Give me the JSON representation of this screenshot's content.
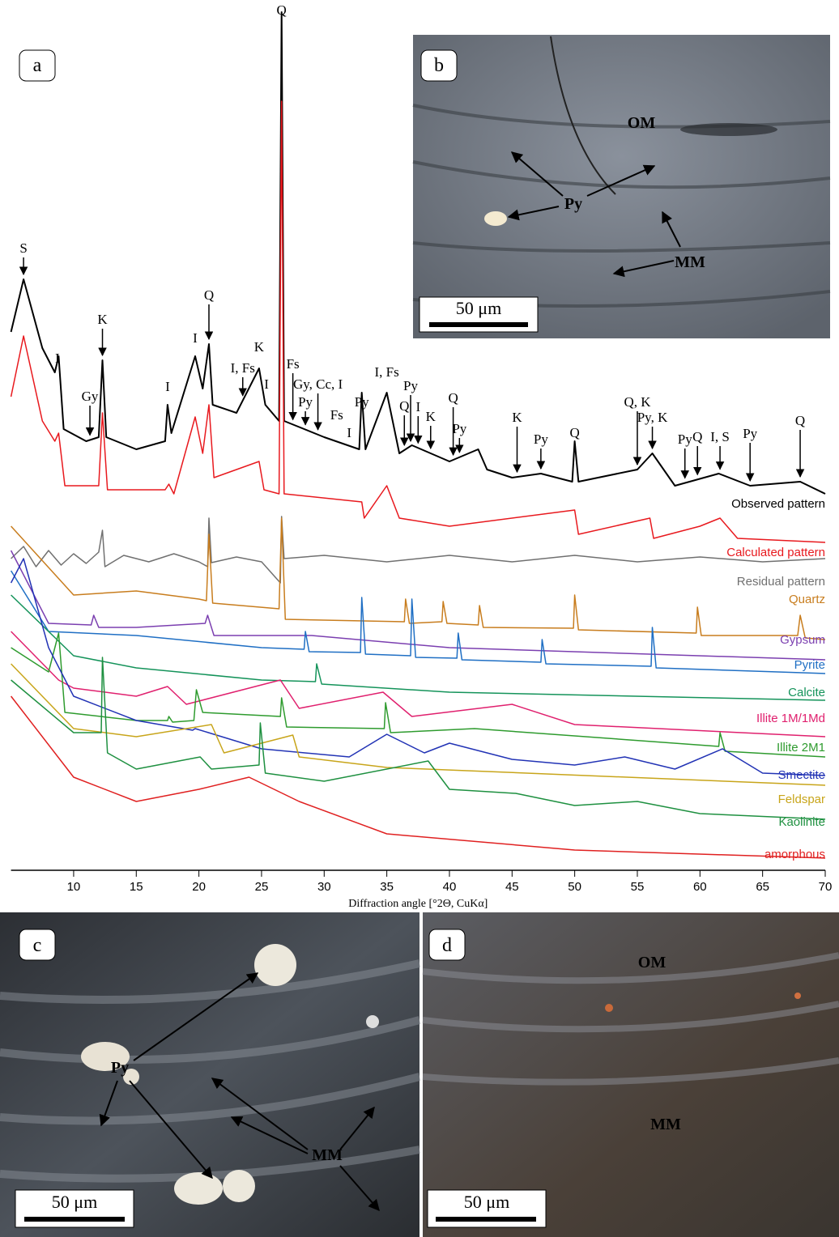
{
  "panels": {
    "a": {
      "letter": "a"
    },
    "b": {
      "letter": "b",
      "labels": [
        "OM",
        "Py",
        "MM"
      ],
      "scale": "50 μm"
    },
    "c": {
      "letter": "c",
      "labels": [
        "Py",
        "MM"
      ],
      "scale": "50 μm"
    },
    "d": {
      "letter": "d",
      "labels": [
        "OM",
        "MM"
      ],
      "scale": "50 μm"
    }
  },
  "chart_data": {
    "type": "line",
    "xlabel": "Diffraction angle [°2Θ, CuKα]",
    "xlim": [
      5,
      70
    ],
    "xticks": [
      10,
      15,
      20,
      25,
      30,
      35,
      40,
      45,
      50,
      55,
      60,
      65,
      70
    ],
    "ylim": [
      0,
      1065
    ],
    "series": [
      {
        "name": "Observed pattern",
        "color": "#000000",
        "x": [
          5,
          6,
          7.5,
          8.5,
          8.8,
          9.2,
          11,
          12,
          12.3,
          12.6,
          15,
          17.3,
          17.5,
          17.8,
          19.7,
          20.3,
          20.8,
          21.1,
          23,
          24.8,
          25.3,
          26.4,
          26.6,
          26.8,
          30,
          32.8,
          33,
          33.3,
          35,
          36,
          37,
          40,
          42.3,
          43,
          45,
          47.3,
          49.8,
          50,
          50.3,
          55,
          56.2,
          58,
          61.5,
          64,
          68,
          70
        ],
        "values": [
          665,
          730,
          645,
          615,
          635,
          545,
          530,
          535,
          630,
          535,
          520,
          530,
          575,
          540,
          635,
          595,
          650,
          575,
          565,
          620,
          575,
          555,
          1060,
          555,
          535,
          520,
          590,
          520,
          590,
          515,
          525,
          505,
          520,
          495,
          485,
          490,
          480,
          530,
          480,
          495,
          515,
          475,
          490,
          475,
          480,
          465
        ]
      },
      {
        "name": "Calculated pattern",
        "color": "#e8191e",
        "x": [
          5,
          6,
          7.5,
          8.5,
          8.8,
          9.3,
          12,
          12.3,
          12.7,
          17.3,
          17.6,
          18,
          19.7,
          20.3,
          20.8,
          21.2,
          24.8,
          25.2,
          26.4,
          26.6,
          26.8,
          33,
          33.2,
          35,
          36,
          40,
          50,
          50.3,
          56,
          56.3,
          60,
          61.6,
          63,
          70
        ],
        "values": [
          585,
          660,
          555,
          530,
          540,
          475,
          475,
          565,
          470,
          470,
          477,
          465,
          560,
          515,
          575,
          485,
          505,
          470,
          465,
          950,
          465,
          455,
          435,
          475,
          435,
          425,
          445,
          415,
          435,
          410,
          425,
          435,
          410,
          405
        ]
      },
      {
        "name": "Residual pattern",
        "color": "#707070",
        "x": [
          5,
          6,
          7,
          8,
          9,
          10,
          11,
          12,
          12.3,
          12.5,
          14,
          16,
          18,
          20,
          20.7,
          20.8,
          21,
          23,
          25,
          26.5,
          26.6,
          26.8,
          30,
          35,
          40,
          45,
          50,
          55,
          60,
          65,
          70
        ],
        "values": [
          385,
          400,
          375,
          395,
          377,
          391,
          379,
          393,
          420,
          375,
          389,
          381,
          391,
          381,
          375,
          435,
          380,
          387,
          381,
          355,
          437,
          385,
          389,
          381,
          389,
          381,
          389,
          381,
          387,
          381,
          385
        ]
      },
      {
        "name": "Quartz",
        "color": "#c87d1e",
        "x": [
          5,
          10,
          15,
          20,
          20.6,
          20.8,
          21.1,
          26.4,
          26.6,
          26.9,
          36.4,
          36.5,
          36.8,
          39.4,
          39.5,
          39.8,
          42.3,
          42.4,
          42.7,
          49.9,
          50,
          50.3,
          59.7,
          59.8,
          60.1,
          67.8,
          68,
          68.4,
          70
        ],
        "values": [
          425,
          340,
          345,
          335,
          333,
          415,
          330,
          323,
          435,
          310,
          307,
          335,
          305,
          307,
          332,
          305,
          303,
          327,
          300,
          299,
          340,
          297,
          293,
          325,
          290,
          290,
          315,
          287,
          285
        ]
      },
      {
        "name": "Gypsum",
        "color": "#7b3fb0",
        "x": [
          5,
          8,
          11.4,
          11.6,
          12,
          15,
          20.5,
          20.7,
          21.2,
          29,
          40,
          70
        ],
        "values": [
          395,
          305,
          303,
          315,
          300,
          300,
          305,
          315,
          290,
          290,
          275,
          260
        ]
      },
      {
        "name": "Pyrite",
        "color": "#1f6fc4",
        "x": [
          5,
          8,
          15,
          25,
          28.4,
          28.5,
          28.8,
          32.9,
          33,
          33.3,
          36.9,
          37,
          37.3,
          40.6,
          40.7,
          41,
          47.3,
          47.4,
          47.7,
          56.1,
          56.2,
          56.5,
          70
        ],
        "values": [
          370,
          295,
          290,
          275,
          273,
          295,
          270,
          269,
          337,
          267,
          265,
          335,
          263,
          262,
          293,
          260,
          257,
          285,
          255,
          252,
          300,
          250,
          243
        ]
      },
      {
        "name": "Calcite",
        "color": "#14935a",
        "x": [
          5,
          10,
          15,
          25,
          29.3,
          29.4,
          29.8,
          40,
          70
        ],
        "values": [
          340,
          265,
          250,
          235,
          233,
          255,
          230,
          220,
          210
        ]
      },
      {
        "name": "Illite 1M/1Md",
        "color": "#e0206e",
        "x": [
          5,
          8.8,
          10,
          15,
          17.5,
          19,
          26.5,
          28,
          34.7,
          37,
          45,
          50,
          70
        ],
        "values": [
          295,
          235,
          225,
          215,
          227,
          205,
          235,
          200,
          220,
          190,
          205,
          180,
          165
        ]
      },
      {
        "name": "Illite 2M1",
        "color": "#2e9b2e",
        "x": [
          5,
          8,
          8.8,
          9.3,
          15,
          17.5,
          17.6,
          17.9,
          19.6,
          19.8,
          20.3,
          26.5,
          26.6,
          27,
          34.8,
          34.9,
          35.3,
          42,
          61.5,
          61.6,
          62,
          70
        ],
        "values": [
          275,
          245,
          293,
          195,
          185,
          185,
          190,
          183,
          185,
          223,
          195,
          190,
          213,
          177,
          175,
          207,
          170,
          175,
          153,
          170,
          147,
          140
        ]
      },
      {
        "name": "Smectite",
        "color": "#2233b5",
        "x": [
          5,
          6,
          8,
          10,
          15,
          19.5,
          19.7,
          25,
          32,
          35,
          38,
          40,
          45,
          50,
          54,
          58,
          61.8,
          65,
          70
        ],
        "values": [
          355,
          385,
          275,
          215,
          185,
          173,
          175,
          150,
          140,
          168,
          145,
          157,
          137,
          130,
          140,
          125,
          150,
          120,
          117
        ]
      },
      {
        "name": "Feldspar",
        "color": "#c8a51a",
        "x": [
          5,
          10,
          15,
          21,
          22,
          27.5,
          28,
          35,
          70
        ],
        "values": [
          255,
          175,
          165,
          180,
          145,
          167,
          140,
          127,
          105
        ]
      },
      {
        "name": "Kaolinite",
        "color": "#1e9040",
        "x": [
          5,
          10,
          12.2,
          12.3,
          12.7,
          15,
          20.1,
          21,
          24.8,
          24.9,
          25.3,
          30,
          38.3,
          40,
          45.3,
          50,
          55,
          60,
          70
        ],
        "values": [
          235,
          170,
          170,
          263,
          145,
          125,
          140,
          125,
          130,
          182,
          120,
          110,
          135,
          100,
          95,
          80,
          85,
          70,
          63
        ]
      },
      {
        "name": "amorphous",
        "color": "#e02020",
        "x": [
          5,
          10,
          15,
          20,
          24,
          28,
          35,
          50,
          70
        ],
        "values": [
          215,
          115,
          85,
          100,
          115,
          85,
          45,
          25,
          15
        ]
      }
    ],
    "annotations": [
      {
        "text": "S",
        "x": 6
      },
      {
        "text": "I",
        "x": 8.7
      },
      {
        "text": "Gy",
        "x": 11.3
      },
      {
        "text": "K",
        "x": 12.3
      },
      {
        "text": "I",
        "x": 17.5
      },
      {
        "text": "I",
        "x": 19.7
      },
      {
        "text": "Q",
        "x": 20.8
      },
      {
        "text": "I, Fs",
        "x": 23.5
      },
      {
        "text": "K",
        "x": 24.8
      },
      {
        "text": "I",
        "x": 25.4
      },
      {
        "text": "Q",
        "x": 26.6
      },
      {
        "text": "Fs",
        "x": 27.5
      },
      {
        "text": "Py",
        "x": 28.5
      },
      {
        "text": "Gy, Cc, I",
        "x": 29.5
      },
      {
        "text": "Fs",
        "x": 31
      },
      {
        "text": "I",
        "x": 32
      },
      {
        "text": "Py",
        "x": 33
      },
      {
        "text": "I, Fs",
        "x": 35
      },
      {
        "text": "Q",
        "x": 36.4
      },
      {
        "text": "Py",
        "x": 36.9
      },
      {
        "text": "I",
        "x": 37.5
      },
      {
        "text": "K",
        "x": 38.5
      },
      {
        "text": "Q",
        "x": 40.3
      },
      {
        "text": "Py",
        "x": 40.8
      },
      {
        "text": "K",
        "x": 45.4
      },
      {
        "text": "Py",
        "x": 47.3
      },
      {
        "text": "Q",
        "x": 50
      },
      {
        "text": "Q, K",
        "x": 55
      },
      {
        "text": "Py, K",
        "x": 56.2
      },
      {
        "text": "Py",
        "x": 58.8
      },
      {
        "text": "Q",
        "x": 59.8
      },
      {
        "text": "I, S",
        "x": 61.6
      },
      {
        "text": "Py",
        "x": 64
      },
      {
        "text": "Q",
        "x": 68
      }
    ]
  }
}
